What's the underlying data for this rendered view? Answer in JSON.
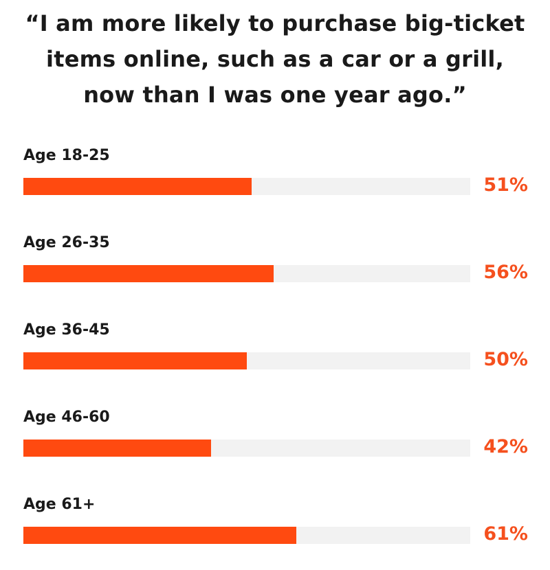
{
  "chart_data": {
    "type": "bar",
    "orientation": "horizontal",
    "title": "“I am more likely to purchase big-ticket items online, such as a car or a grill, now than I was one year ago.”",
    "title_lines": [
      "“I am more likely to purchase big-ticket",
      "items online, such as a car or a grill,",
      "now than I was one year ago.”"
    ],
    "categories": [
      "Age 18-25",
      "Age 26-35",
      "Age 36-45",
      "Age 46-60",
      "Age 61+"
    ],
    "values": [
      51,
      56,
      50,
      42,
      61
    ],
    "value_labels": [
      "51%",
      "56%",
      "50%",
      "42%",
      "61%"
    ],
    "unit": "%",
    "xlim": [
      0,
      100
    ],
    "grid": false,
    "legend": "none",
    "colors": {
      "bar": "#ff4a10",
      "track": "#f2f2f2",
      "value_text": "#f5501e",
      "label_text": "#1a1a1a"
    }
  }
}
